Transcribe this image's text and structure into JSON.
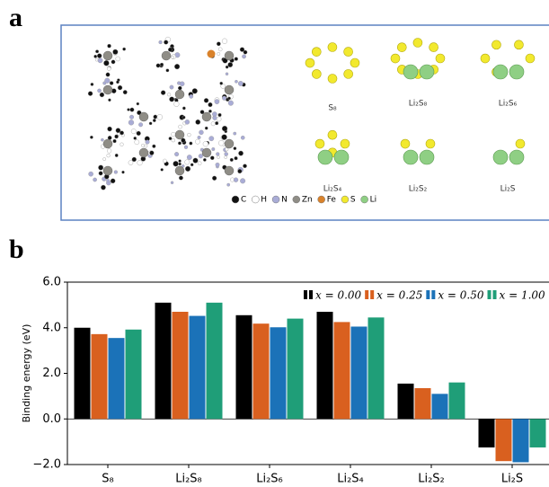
{
  "figure": {
    "panel_a_label": "a",
    "panel_b_label": "b"
  },
  "panel_a": {
    "molecules": [
      "S₈",
      "Li₂S₈",
      "Li₂S₆",
      "Li₂S₄",
      "Li₂S₂",
      "Li₂S"
    ],
    "legend": [
      {
        "name": "C",
        "color": "#111111"
      },
      {
        "name": "H",
        "color": "#ffffff"
      },
      {
        "name": "N",
        "color": "#a9acd6"
      },
      {
        "name": "Zn",
        "color": "#8f8d86"
      },
      {
        "name": "Fe",
        "color": "#d9822b"
      },
      {
        "name": "S",
        "color": "#f2e92e"
      },
      {
        "name": "Li",
        "color": "#8fcf84"
      }
    ]
  },
  "chart_data": {
    "type": "bar",
    "ylabel": "Binding energy (eV)",
    "categories": [
      "S₈",
      "Li₂S₈",
      "Li₂S₆",
      "Li₂S₄",
      "Li₂S₂",
      "Li₂S"
    ],
    "series": [
      {
        "name": "x = 0.00",
        "color": "#000000",
        "values": [
          4.0,
          5.1,
          4.55,
          4.7,
          1.55,
          -1.25
        ]
      },
      {
        "name": "x = 0.25",
        "color": "#d9601f",
        "values": [
          3.72,
          4.7,
          4.18,
          4.25,
          1.35,
          -1.85
        ]
      },
      {
        "name": "x = 0.50",
        "color": "#1b72b8",
        "values": [
          3.55,
          4.52,
          4.02,
          4.05,
          1.1,
          -1.9
        ]
      },
      {
        "name": "x = 1.00",
        "color": "#1f9e78",
        "values": [
          3.92,
          5.1,
          4.4,
          4.45,
          1.6,
          -1.25
        ]
      }
    ],
    "ylim": [
      -2,
      6
    ],
    "yticks": [
      {
        "value": -2,
        "label": "−2.0"
      },
      {
        "value": 0,
        "label": "0.0"
      },
      {
        "value": 2,
        "label": "2.0"
      },
      {
        "value": 4,
        "label": "4.0"
      },
      {
        "value": 6,
        "label": "6.0"
      }
    ],
    "legend_position": "upper right"
  }
}
